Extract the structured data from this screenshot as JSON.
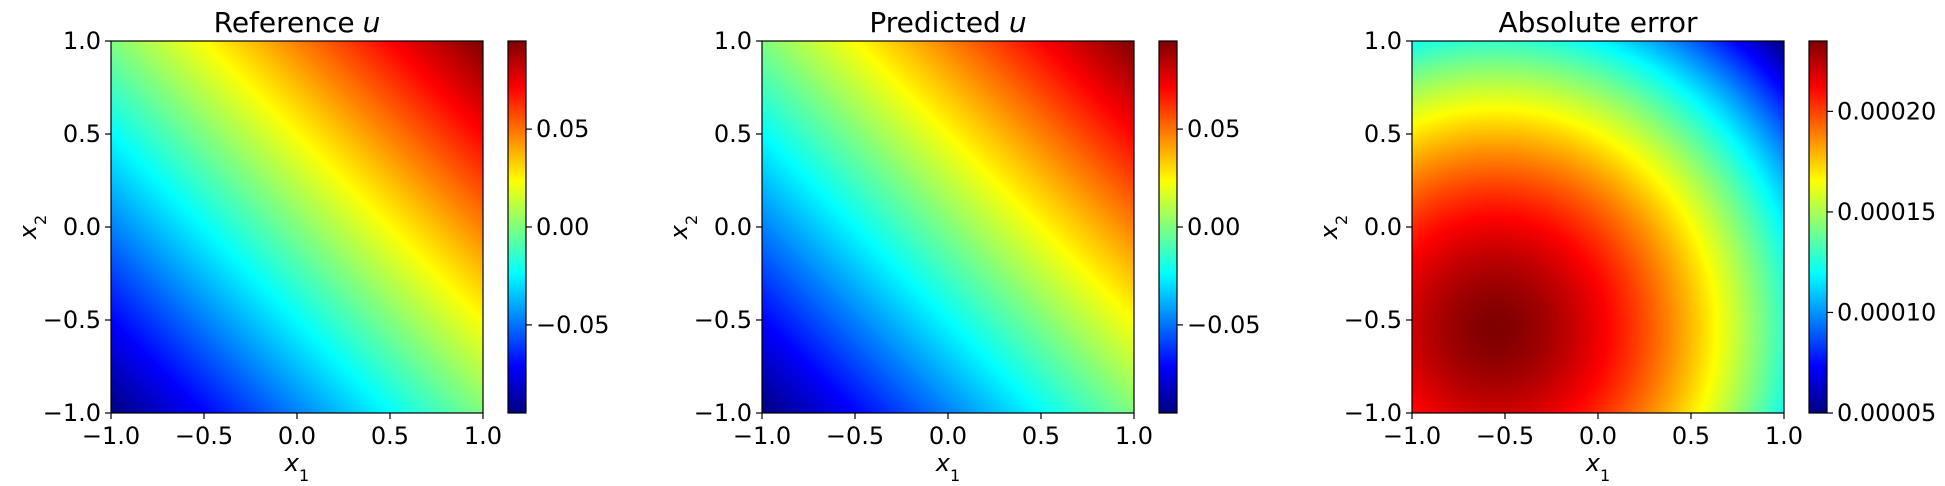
{
  "chart_data": [
    {
      "type": "heatmap",
      "title": "Reference",
      "title_var": "u",
      "xlabel": "x",
      "xlabel_sub": "1",
      "ylabel": "x",
      "ylabel_sub": "2",
      "xlim": [
        -1.0,
        1.0
      ],
      "ylim": [
        -1.0,
        1.0
      ],
      "xticks": [
        -1.0,
        -0.5,
        0.0,
        0.5,
        1.0
      ],
      "yticks": [
        -1.0,
        -0.5,
        0.0,
        0.5,
        1.0
      ],
      "xtick_labels": [
        "−1.0",
        "−0.5",
        "0.0",
        "0.5",
        "1.0"
      ],
      "ytick_labels": [
        "−1.0",
        "−0.5",
        "0.0",
        "0.5",
        "1.0"
      ],
      "colormap": "jet",
      "colorbar": {
        "range": [
          -0.095,
          0.095
        ],
        "ticks": [
          -0.05,
          0.0,
          0.05
        ],
        "tick_labels": [
          "−0.05",
          "0.00",
          "0.05"
        ]
      },
      "field": "linear",
      "field_params": {
        "a": 0.0475,
        "b": 0.0475,
        "c": 0.0
      }
    },
    {
      "type": "heatmap",
      "title": "Predicted",
      "title_var": "u",
      "xlabel": "x",
      "xlabel_sub": "1",
      "ylabel": "x",
      "ylabel_sub": "2",
      "xlim": [
        -1.0,
        1.0
      ],
      "ylim": [
        -1.0,
        1.0
      ],
      "xticks": [
        -1.0,
        -0.5,
        0.0,
        0.5,
        1.0
      ],
      "yticks": [
        -1.0,
        -0.5,
        0.0,
        0.5,
        1.0
      ],
      "xtick_labels": [
        "−1.0",
        "−0.5",
        "0.0",
        "0.5",
        "1.0"
      ],
      "ytick_labels": [
        "−1.0",
        "−0.5",
        "0.0",
        "0.5",
        "1.0"
      ],
      "colormap": "jet",
      "colorbar": {
        "range": [
          -0.095,
          0.095
        ],
        "ticks": [
          -0.05,
          0.0,
          0.05
        ],
        "tick_labels": [
          "−0.05",
          "0.00",
          "0.05"
        ]
      },
      "field": "linear",
      "field_params": {
        "a": 0.0475,
        "b": 0.0475,
        "c": 0.0
      }
    },
    {
      "type": "heatmap",
      "title": "Absolute error",
      "title_var": "",
      "xlabel": "x",
      "xlabel_sub": "1",
      "ylabel": "x",
      "ylabel_sub": "2",
      "xlim": [
        -1.0,
        1.0
      ],
      "ylim": [
        -1.0,
        1.0
      ],
      "xticks": [
        -1.0,
        -0.5,
        0.0,
        0.5,
        1.0
      ],
      "yticks": [
        -1.0,
        -0.5,
        0.0,
        0.5,
        1.0
      ],
      "xtick_labels": [
        "−1.0",
        "−0.5",
        "0.0",
        "0.5",
        "1.0"
      ],
      "ytick_labels": [
        "−1.0",
        "−0.5",
        "0.0",
        "0.5",
        "1.0"
      ],
      "colormap": "jet",
      "colorbar": {
        "range": [
          5e-05,
          0.000235
        ],
        "ticks": [
          5e-05,
          0.0001,
          0.00015,
          0.0002
        ],
        "tick_labels": [
          "0.00005",
          "0.00010",
          "0.00015",
          "0.00020"
        ]
      },
      "field": "radial",
      "field_params": {
        "max": 0.000235,
        "min": 5e-05,
        "cx": -0.55,
        "cy": -0.55,
        "rmax": 2.19
      }
    }
  ]
}
